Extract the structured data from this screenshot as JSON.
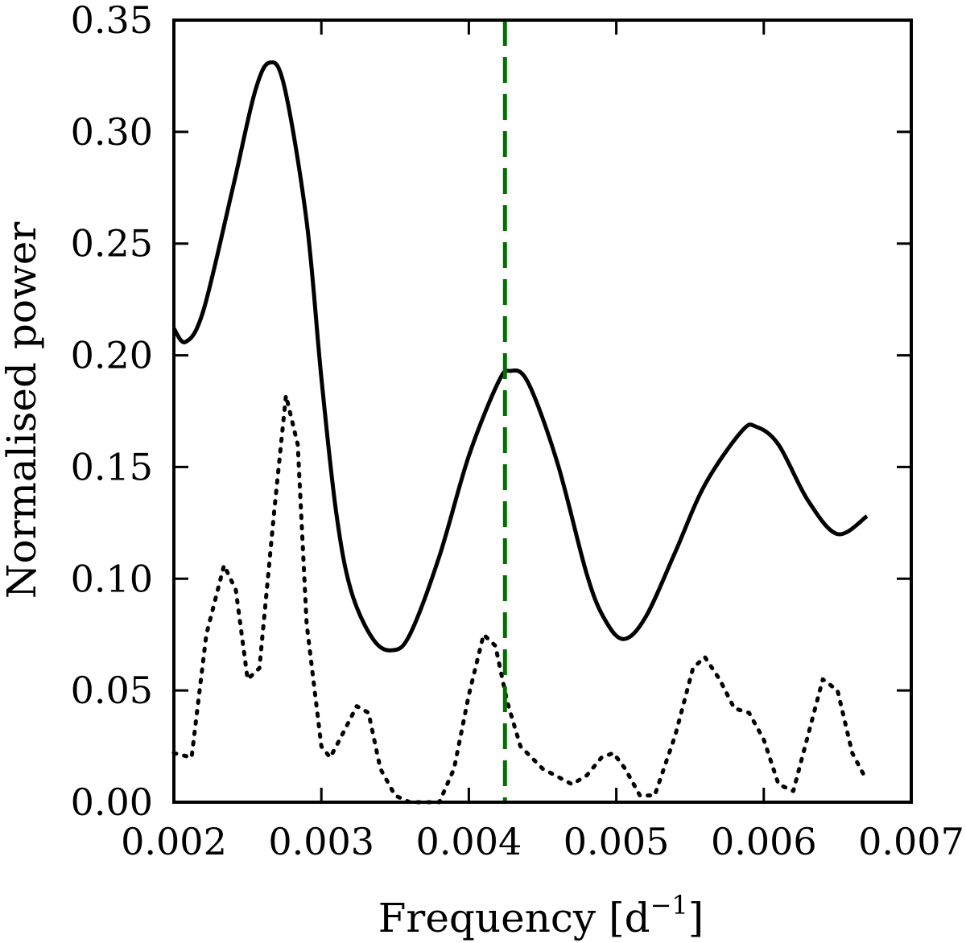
{
  "chart_data": {
    "type": "line",
    "title": "",
    "xlabel_text": "Frequency [d",
    "xlabel_sup": "−1",
    "xlabel_close": "]",
    "ylabel": "Normalised power",
    "xlim": [
      0.002,
      0.007
    ],
    "ylim": [
      0.0,
      0.35
    ],
    "xticks": [
      0.002,
      0.003,
      0.004,
      0.005,
      0.006,
      0.007
    ],
    "xtick_labels": [
      "0.002",
      "0.003",
      "0.004",
      "0.005",
      "0.006",
      "0.007"
    ],
    "yticks": [
      0.0,
      0.05,
      0.1,
      0.15,
      0.2,
      0.25,
      0.3,
      0.35
    ],
    "ytick_labels": [
      "0.00",
      "0.05",
      "0.10",
      "0.15",
      "0.20",
      "0.25",
      "0.30",
      "0.35"
    ],
    "grid": false,
    "series": [
      {
        "style": "solid",
        "color": "#000000",
        "x": [
          0.002,
          0.00208,
          0.0022,
          0.0024,
          0.00255,
          0.00265,
          0.00275,
          0.0029,
          0.003,
          0.0031,
          0.0032,
          0.00335,
          0.00348,
          0.0036,
          0.0038,
          0.004,
          0.0042,
          0.00428,
          0.0044,
          0.0046,
          0.0048,
          0.00492,
          0.00505,
          0.0052,
          0.0054,
          0.0056,
          0.00585,
          0.00595,
          0.0061,
          0.0063,
          0.0065,
          0.0067
        ],
        "y": [
          0.212,
          0.206,
          0.22,
          0.275,
          0.318,
          0.331,
          0.32,
          0.26,
          0.19,
          0.13,
          0.095,
          0.073,
          0.068,
          0.075,
          0.11,
          0.155,
          0.188,
          0.193,
          0.188,
          0.152,
          0.102,
          0.082,
          0.073,
          0.083,
          0.112,
          0.142,
          0.166,
          0.168,
          0.16,
          0.135,
          0.12,
          0.128
        ]
      },
      {
        "style": "dotted",
        "color": "#000000",
        "x": [
          0.002,
          0.00212,
          0.00222,
          0.00234,
          0.00242,
          0.0025,
          0.00258,
          0.00268,
          0.00276,
          0.00284,
          0.0029,
          0.003,
          0.00306,
          0.00314,
          0.00324,
          0.00332,
          0.0034,
          0.0035,
          0.0036,
          0.0037,
          0.0038,
          0.0039,
          0.004,
          0.0041,
          0.00418,
          0.00426,
          0.00435,
          0.0045,
          0.0047,
          0.0048,
          0.0049,
          0.00498,
          0.00506,
          0.00516,
          0.00526,
          0.0054,
          0.00552,
          0.0056,
          0.0057,
          0.0058,
          0.0059,
          0.006,
          0.0061,
          0.0062,
          0.0063,
          0.0064,
          0.0065,
          0.0066,
          0.00668
        ],
        "y": [
          0.022,
          0.02,
          0.075,
          0.106,
          0.095,
          0.055,
          0.06,
          0.13,
          0.182,
          0.16,
          0.08,
          0.025,
          0.02,
          0.03,
          0.043,
          0.04,
          0.015,
          0.003,
          0.0,
          0.0,
          0.0,
          0.015,
          0.048,
          0.075,
          0.07,
          0.045,
          0.025,
          0.015,
          0.008,
          0.012,
          0.02,
          0.022,
          0.015,
          0.003,
          0.003,
          0.03,
          0.06,
          0.065,
          0.055,
          0.042,
          0.04,
          0.028,
          0.008,
          0.005,
          0.03,
          0.055,
          0.05,
          0.022,
          0.012
        ]
      }
    ],
    "vlines": [
      {
        "x": 0.004245,
        "color": "#007000",
        "style": "dashed"
      }
    ]
  }
}
